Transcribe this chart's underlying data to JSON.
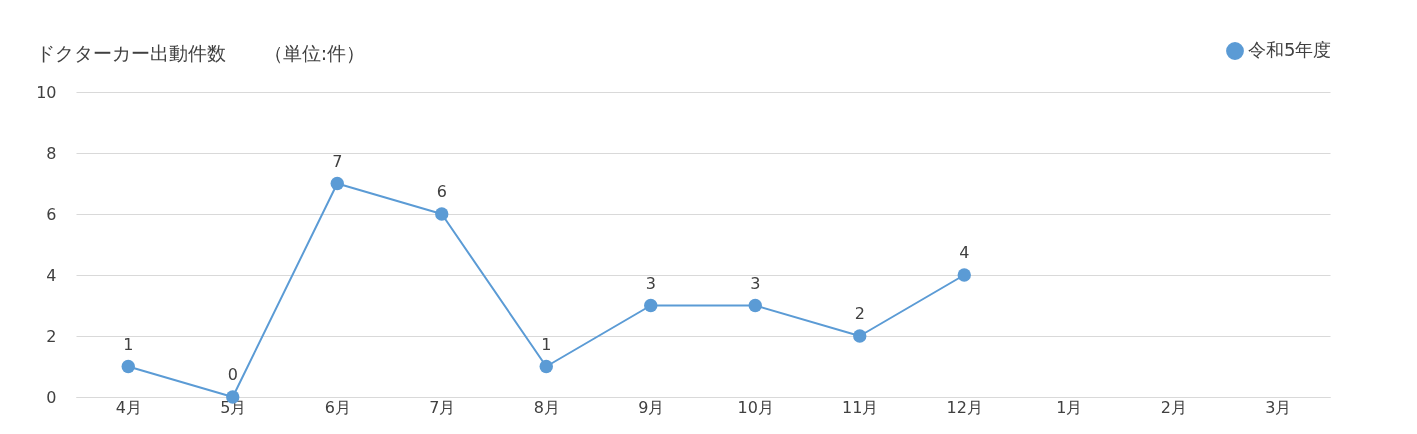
{
  "chart_data": {
    "type": "line",
    "title": "ドクターカー出動件数　　（単位:件）",
    "categories": [
      "4月",
      "5月",
      "6月",
      "7月",
      "8月",
      "9月",
      "10月",
      "11月",
      "12月",
      "1月",
      "2月",
      "3月"
    ],
    "series": [
      {
        "name": "令和5年度",
        "color": "#5b9bd5",
        "values": [
          1,
          0,
          7,
          6,
          1,
          3,
          3,
          2,
          4,
          null,
          null,
          null
        ]
      }
    ],
    "ylim": [
      0,
      10
    ],
    "yticks": [
      0,
      2,
      4,
      6,
      8,
      10
    ],
    "grid": "y",
    "legend": "top right",
    "marker": "circle",
    "line_style": "solid",
    "data_labels": true
  }
}
